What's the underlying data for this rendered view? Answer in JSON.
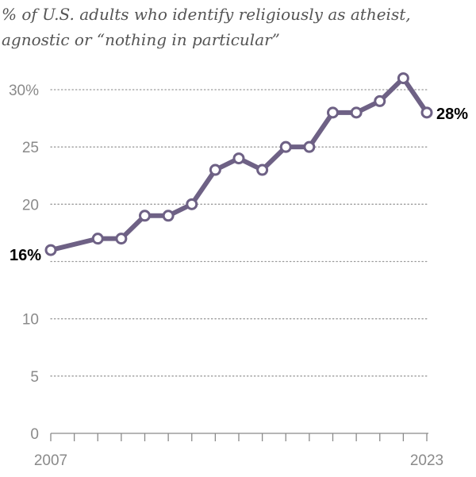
{
  "chart_data": {
    "type": "line",
    "title_lines": [
      "% of U.S. adults who identify religiously as atheist,",
      "agnostic or “nothing in particular”"
    ],
    "x": [
      2007,
      2008,
      2009,
      2010,
      2011,
      2012,
      2013,
      2014,
      2015,
      2016,
      2017,
      2018,
      2019,
      2020,
      2021,
      2022,
      2023
    ],
    "series": [
      {
        "points": [
          {
            "x": 2007,
            "y": 16
          },
          {
            "x": 2009,
            "y": 17
          },
          {
            "x": 2010,
            "y": 17
          },
          {
            "x": 2011,
            "y": 19
          },
          {
            "x": 2012,
            "y": 19
          },
          {
            "x": 2013,
            "y": 20
          },
          {
            "x": 2014,
            "y": 23
          },
          {
            "x": 2015,
            "y": 24
          },
          {
            "x": 2016,
            "y": 23
          },
          {
            "x": 2017,
            "y": 25
          },
          {
            "x": 2018,
            "y": 25
          },
          {
            "x": 2019,
            "y": 28
          },
          {
            "x": 2020,
            "y": 28
          },
          {
            "x": 2021,
            "y": 29
          },
          {
            "x": 2022,
            "y": 31
          },
          {
            "x": 2023,
            "y": 28
          }
        ],
        "color": "#6e6185"
      }
    ],
    "ylim": [
      0,
      30
    ],
    "yticks": [
      {
        "value": 0,
        "label": "0"
      },
      {
        "value": 5,
        "label": "5"
      },
      {
        "value": 10,
        "label": "10"
      },
      {
        "value": 15,
        "label": ""
      },
      {
        "value": 20,
        "label": "20"
      },
      {
        "value": 25,
        "label": "25"
      },
      {
        "value": 30,
        "label": "30%"
      }
    ],
    "xlim": [
      2007,
      2023
    ],
    "xtick_labels": [
      {
        "value": 2007,
        "label": "2007"
      },
      {
        "value": 2023,
        "label": "2023"
      }
    ],
    "annotations": [
      {
        "x": 2007,
        "y": 16,
        "text": "16%",
        "position": "left"
      },
      {
        "x": 2023,
        "y": 28,
        "text": "28%",
        "position": "right"
      }
    ],
    "grid": true,
    "grid_style": "dotted",
    "grid_color": "#9a9a9a",
    "axis_color": "#8a8a8a",
    "marker": "open-circle"
  }
}
